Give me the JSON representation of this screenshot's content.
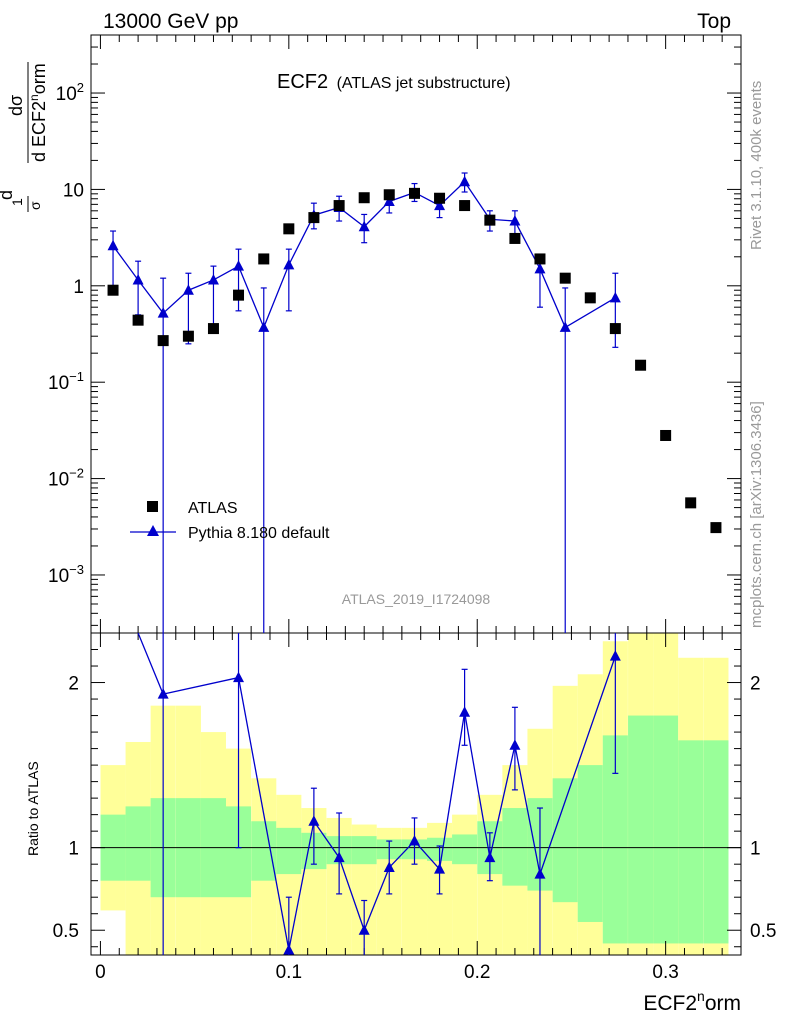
{
  "header": {
    "left": "13000 GeV pp",
    "right": "Top"
  },
  "plot_title": {
    "main": "ECF2",
    "sub": "(ATLAS jet substructure)"
  },
  "side_labels": {
    "rivet": "Rivet 3.1.10,  400k events",
    "mcplots": "mcplots.cern.ch [arXiv:1306.3436]"
  },
  "analysis_label": "ATLAS_2019_I1724098",
  "xlabel": {
    "main": "ECF2",
    "sup": "n",
    "rest": "orm"
  },
  "ylabel": {
    "d1": "d",
    "one": "1",
    "sigma": "σ",
    "dsigma": "dσ",
    "den_main": "d ECF2",
    "den_sup": "n",
    "den_rest": "orm"
  },
  "ratio_ylabel": "Ratio to ATLAS",
  "legend": {
    "atlas": "ATLAS",
    "pythia": "Pythia 8.180 default"
  },
  "top_ticks": [
    {
      "value": 0.001,
      "base": "10",
      "exp": "−3"
    },
    {
      "value": 0.01,
      "base": "10",
      "exp": "−2"
    },
    {
      "value": 0.1,
      "base": "10",
      "exp": "−1"
    },
    {
      "value": 1,
      "base": "1",
      "exp": ""
    },
    {
      "value": 10,
      "base": "10",
      "exp": ""
    },
    {
      "value": 100,
      "base": "10",
      "exp": "2"
    }
  ],
  "ratio_ticks": [
    {
      "value": 0.5,
      "label": "0.5"
    },
    {
      "value": 1,
      "label": "1"
    },
    {
      "value": 2,
      "label": "2"
    }
  ],
  "x_ticks": [
    {
      "value": 0,
      "label": "0"
    },
    {
      "value": 0.1,
      "label": "0.1"
    },
    {
      "value": 0.2,
      "label": "0.2"
    },
    {
      "value": 0.3,
      "label": "0.3"
    }
  ],
  "colors": {
    "data": "#000000",
    "mc": "#0000cc",
    "band_inner": "#99ff99",
    "band_outer": "#ffff99"
  },
  "chart_data": {
    "type": "scatter",
    "xlim": [
      -0.005,
      0.34
    ],
    "ylim_top": [
      0.00025,
      400
    ],
    "ylog": true,
    "ylim_ratio": [
      0.35,
      2.3
    ],
    "bin_width": 0.0133,
    "x": [
      0.0067,
      0.02,
      0.0333,
      0.0467,
      0.06,
      0.0733,
      0.0867,
      0.1,
      0.1133,
      0.1267,
      0.14,
      0.1533,
      0.1667,
      0.18,
      0.1933,
      0.2067,
      0.22,
      0.2333,
      0.2467,
      0.26,
      0.2733,
      0.2867,
      0.3,
      0.3133,
      0.3267
    ],
    "series": [
      {
        "name": "ATLAS",
        "values": [
          0.9,
          0.44,
          0.27,
          0.3,
          0.36,
          0.8,
          1.9,
          3.9,
          5.1,
          6.8,
          8.2,
          8.8,
          9.1,
          8.1,
          6.8,
          4.8,
          3.1,
          1.9,
          1.2,
          0.75,
          0.36,
          0.15,
          0.028,
          0.0056,
          0.0031
        ]
      },
      {
        "name": "Pythia 8.180 default",
        "x": [
          0.0067,
          0.02,
          0.0333,
          0.0467,
          0.06,
          0.0733,
          0.0867,
          0.1,
          0.1133,
          0.1267,
          0.14,
          0.1533,
          0.1667,
          0.18,
          0.1933,
          0.2067,
          0.22,
          0.2333,
          0.2467,
          0.2733
        ],
        "values": [
          2.6,
          1.15,
          0.52,
          0.9,
          1.15,
          1.6,
          0.37,
          1.65,
          5.4,
          6.5,
          4.1,
          7.5,
          9.3,
          6.8,
          12.0,
          4.9,
          4.7,
          1.5,
          0.37,
          0.75
        ],
        "err_lo": [
          1.6,
          0.65,
          0.52,
          0.65,
          0.75,
          1.05,
          0.37,
          1.1,
          1.5,
          1.8,
          1.3,
          1.8,
          1.8,
          1.7,
          2.6,
          1.2,
          1.4,
          0.9,
          0.37,
          0.52
        ],
        "err_hi": [
          3.7,
          1.8,
          1.2,
          1.35,
          1.6,
          2.4,
          0.95,
          2.4,
          7.2,
          8.5,
          5.5,
          8.9,
          11.5,
          8.4,
          14.8,
          6.0,
          6.0,
          2.0,
          0.95,
          1.35
        ]
      }
    ],
    "ratio": {
      "x": [
        0.0333,
        0.0733,
        0.1,
        0.1133,
        0.1267,
        0.14,
        0.1533,
        0.1667,
        0.18,
        0.1933,
        0.2067,
        0.22,
        0.2333,
        0.2733
      ],
      "values": [
        1.93,
        2.03,
        0.38,
        1.16,
        0.94,
        0.5,
        0.88,
        1.04,
        0.87,
        1.82,
        0.94,
        1.62,
        0.84,
        2.16
      ],
      "err_lo": [
        0.35,
        1.0,
        0.35,
        0.9,
        0.72,
        0.35,
        0.72,
        0.9,
        0.72,
        1.62,
        0.8,
        1.35,
        0.35,
        1.45
      ],
      "err_hi": [
        2.3,
        2.3,
        0.7,
        1.36,
        1.21,
        0.68,
        1.04,
        1.18,
        1.01,
        2.08,
        1.09,
        1.85,
        1.24,
        2.3
      ],
      "band_inner_lo": [
        0.8,
        0.8,
        0.7,
        0.7,
        0.7,
        0.7,
        0.8,
        0.84,
        0.87,
        0.9,
        0.9,
        0.93,
        0.93,
        0.92,
        0.9,
        0.84,
        0.77,
        0.74,
        0.67,
        0.55,
        0.42,
        0.42,
        0.42,
        0.42,
        0.42
      ],
      "band_inner_hi": [
        1.2,
        1.25,
        1.3,
        1.3,
        1.3,
        1.25,
        1.16,
        1.12,
        1.09,
        1.07,
        1.07,
        1.05,
        1.05,
        1.06,
        1.08,
        1.16,
        1.24,
        1.3,
        1.42,
        1.5,
        1.68,
        1.8,
        1.8,
        1.65,
        1.65
      ],
      "band_outer_lo": [
        0.62,
        0.35,
        0.35,
        0.35,
        0.35,
        0.35,
        0.35,
        0.35,
        0.35,
        0.35,
        0.35,
        0.35,
        0.35,
        0.35,
        0.35,
        0.35,
        0.35,
        0.35,
        0.35,
        0.35,
        0.35,
        0.35,
        0.35,
        0.35,
        0.35
      ],
      "band_outer_hi": [
        1.5,
        1.64,
        1.86,
        1.86,
        1.7,
        1.6,
        1.42,
        1.32,
        1.24,
        1.18,
        1.14,
        1.12,
        1.12,
        1.15,
        1.2,
        1.32,
        1.5,
        1.72,
        1.98,
        2.05,
        2.25,
        2.3,
        2.3,
        2.15,
        2.15
      ]
    }
  }
}
